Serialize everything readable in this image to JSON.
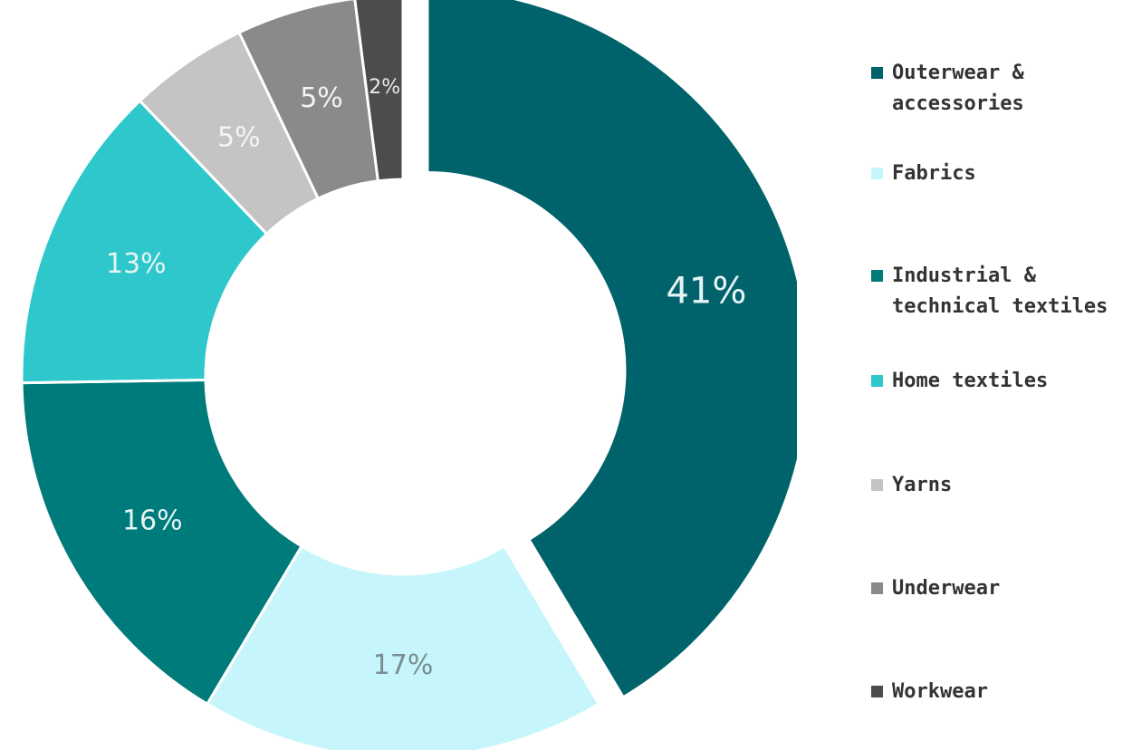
{
  "chart_data": {
    "type": "pie",
    "donut": true,
    "categories": [
      "Outerwear & accessories",
      "Fabrics",
      "Industrial & technical textiles",
      "Home textiles",
      "Yarns",
      "Underwear",
      "Workwear"
    ],
    "values": [
      41,
      17,
      16,
      13,
      5,
      5,
      2
    ],
    "labels": [
      "41%",
      "17%",
      "16%",
      "13%",
      "5%",
      "5%",
      "2%"
    ],
    "colors": [
      "#00636b",
      "#c6f6fb",
      "#007b7b",
      "#2ec7cc",
      "#c4c4c4",
      "#8a8a8a",
      "#4c4c4c"
    ],
    "label_colors": [
      "#e6f4f4",
      "#7a8e90",
      "#e6f4f4",
      "#e6f4f4",
      "#f4f4f4",
      "#f4f4f4",
      "#e8e8e8"
    ],
    "exploded_slice": "Outerwear & accessories",
    "legend_position": "right",
    "legend": [
      {
        "label": "Outerwear &\naccessories",
        "color": "#00636b"
      },
      {
        "label": "Fabrics",
        "color": "#c6f6fb"
      },
      {
        "label": "Industrial &\ntechnical textiles",
        "color": "#007b7b"
      },
      {
        "label": "Home textiles",
        "color": "#2ec7cc"
      },
      {
        "label": "Yarns",
        "color": "#c4c4c4"
      },
      {
        "label": "Underwear",
        "color": "#8a8a8a"
      },
      {
        "label": "Workwear",
        "color": "#4c4c4c"
      }
    ]
  }
}
